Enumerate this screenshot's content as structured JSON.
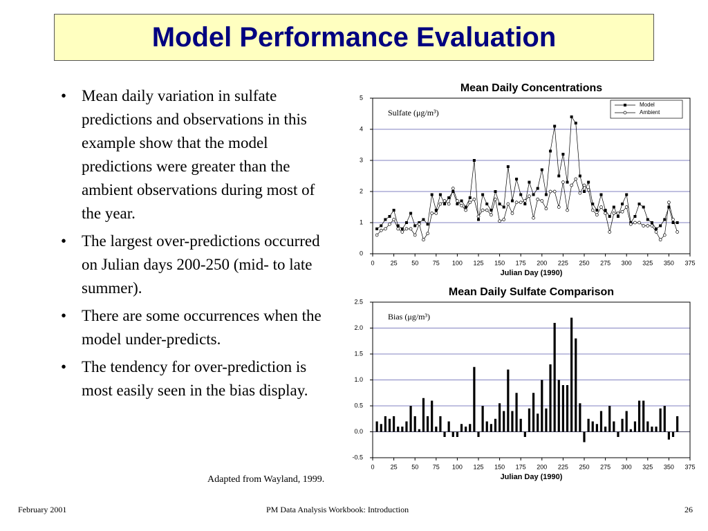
{
  "slide": {
    "title": "Model Performance Evaluation",
    "bullets": [
      "Mean daily variation in sulfate predictions and observations in this example show that the model predictions were greater than the ambient observations during most of the year.",
      "The largest over-predictions occurred on Julian days 200-250 (mid- to late summer).",
      "There are some occurrences when the model under-predicts.",
      "The tendency for over-prediction is most easily seen in the bias display."
    ],
    "source": "Adapted from Wayland, 1999.",
    "footer": {
      "left": "February 2001",
      "center": "PM Data Analysis Workbook: Introduction",
      "page": "26"
    }
  },
  "chart_data": [
    {
      "type": "line",
      "title": "Mean Daily Concentrations",
      "annotation": "Sulfate (μg/m³)",
      "xlabel": "Julian Day (1990)",
      "x": [
        5,
        10,
        15,
        20,
        25,
        30,
        35,
        40,
        45,
        50,
        55,
        60,
        65,
        70,
        75,
        80,
        85,
        90,
        95,
        100,
        105,
        110,
        115,
        120,
        125,
        130,
        135,
        140,
        145,
        150,
        155,
        160,
        165,
        170,
        175,
        180,
        185,
        190,
        195,
        200,
        205,
        210,
        215,
        220,
        225,
        230,
        235,
        240,
        245,
        250,
        255,
        260,
        265,
        270,
        275,
        280,
        285,
        290,
        295,
        300,
        305,
        310,
        315,
        320,
        325,
        330,
        335,
        340,
        345,
        350,
        355,
        360
      ],
      "series": [
        {
          "name": "Model",
          "color": "#000000",
          "marker": "square",
          "values": [
            0.8,
            0.9,
            1.1,
            1.2,
            1.4,
            0.9,
            0.8,
            1.0,
            1.3,
            0.9,
            1.0,
            1.1,
            0.95,
            1.9,
            1.4,
            1.9,
            1.6,
            1.8,
            2.0,
            1.6,
            1.7,
            1.5,
            1.8,
            3.0,
            1.1,
            1.9,
            1.6,
            1.4,
            2.0,
            1.6,
            1.5,
            2.8,
            1.7,
            2.4,
            1.9,
            1.6,
            2.3,
            1.9,
            2.1,
            2.7,
            1.9,
            3.3,
            4.1,
            2.5,
            3.2,
            2.3,
            4.4,
            4.2,
            2.5,
            2.0,
            2.3,
            1.6,
            1.4,
            1.9,
            1.4,
            1.2,
            1.5,
            1.2,
            1.6,
            1.9,
            1.0,
            1.2,
            1.6,
            1.5,
            1.1,
            1.0,
            0.8,
            0.9,
            1.1,
            1.5,
            1.0,
            1.0
          ]
        },
        {
          "name": "Ambient",
          "color": "#000000",
          "marker": "circle",
          "values": [
            0.6,
            0.75,
            0.8,
            0.95,
            1.1,
            0.8,
            0.7,
            0.8,
            0.8,
            0.6,
            0.95,
            0.45,
            0.65,
            1.3,
            1.3,
            1.6,
            1.7,
            1.6,
            2.1,
            1.7,
            1.55,
            1.4,
            1.65,
            1.75,
            1.2,
            1.4,
            1.4,
            1.25,
            1.75,
            1.05,
            1.1,
            1.6,
            1.3,
            1.65,
            1.65,
            1.7,
            1.85,
            1.15,
            1.75,
            1.7,
            1.45,
            2.0,
            2.0,
            1.5,
            2.3,
            1.4,
            2.2,
            2.4,
            1.95,
            2.2,
            2.05,
            1.4,
            1.25,
            1.5,
            1.3,
            0.7,
            1.3,
            1.3,
            1.35,
            1.5,
            0.95,
            1.0,
            1.0,
            0.9,
            0.9,
            0.9,
            0.7,
            0.45,
            0.6,
            1.65,
            1.1,
            0.7
          ]
        }
      ],
      "xlim": [
        0,
        375
      ],
      "xticks": [
        0,
        25,
        50,
        75,
        100,
        125,
        150,
        175,
        200,
        225,
        250,
        275,
        300,
        325,
        350,
        375
      ],
      "ylim": [
        0,
        5
      ],
      "yticks": [
        0,
        1,
        2,
        3,
        4,
        5
      ],
      "grid": true,
      "grid_color": "#8080c0",
      "legend": "upper right"
    },
    {
      "type": "bar",
      "title": "Mean Daily Sulfate Comparison",
      "annotation": "Bias (μg/m³)",
      "xlabel": "Julian Day (1990)",
      "x": [
        5,
        10,
        15,
        20,
        25,
        30,
        35,
        40,
        45,
        50,
        55,
        60,
        65,
        70,
        75,
        80,
        85,
        90,
        95,
        100,
        105,
        110,
        115,
        120,
        125,
        130,
        135,
        140,
        145,
        150,
        155,
        160,
        165,
        170,
        175,
        180,
        185,
        190,
        195,
        200,
        205,
        210,
        215,
        220,
        225,
        230,
        235,
        240,
        245,
        250,
        255,
        260,
        265,
        270,
        275,
        280,
        285,
        290,
        295,
        300,
        305,
        310,
        315,
        320,
        325,
        330,
        335,
        340,
        345,
        350,
        355,
        360
      ],
      "values": [
        0.2,
        0.15,
        0.3,
        0.25,
        0.3,
        0.1,
        0.1,
        0.2,
        0.5,
        0.3,
        0.05,
        0.65,
        0.3,
        0.6,
        0.1,
        0.3,
        -0.1,
        0.2,
        -0.1,
        -0.1,
        0.15,
        0.1,
        0.15,
        1.25,
        -0.1,
        0.5,
        0.2,
        0.15,
        0.25,
        0.55,
        0.4,
        1.2,
        0.4,
        0.75,
        0.25,
        -0.1,
        0.45,
        0.75,
        0.35,
        1.0,
        0.45,
        1.3,
        2.1,
        1.0,
        0.9,
        0.9,
        2.2,
        1.8,
        0.55,
        -0.2,
        0.25,
        0.2,
        0.15,
        0.4,
        0.1,
        0.5,
        0.2,
        -0.1,
        0.25,
        0.4,
        0.05,
        0.2,
        0.6,
        0.6,
        0.2,
        0.1,
        0.1,
        0.45,
        0.5,
        -0.15,
        -0.1,
        0.3
      ],
      "color": "#000000",
      "xlim": [
        0,
        375
      ],
      "xticks": [
        0,
        25,
        50,
        75,
        100,
        125,
        150,
        175,
        200,
        225,
        250,
        275,
        300,
        325,
        350,
        375
      ],
      "ylim": [
        -0.5,
        2.5
      ],
      "yticks": [
        -0.5,
        {
          "value": 0,
          "label": "0.0"
        },
        0.5,
        {
          "value": 1,
          "label": "1.0"
        },
        1.5,
        {
          "value": 2,
          "label": "2.0"
        },
        2.5
      ],
      "grid": true,
      "grid_color": "#8080c0"
    }
  ]
}
